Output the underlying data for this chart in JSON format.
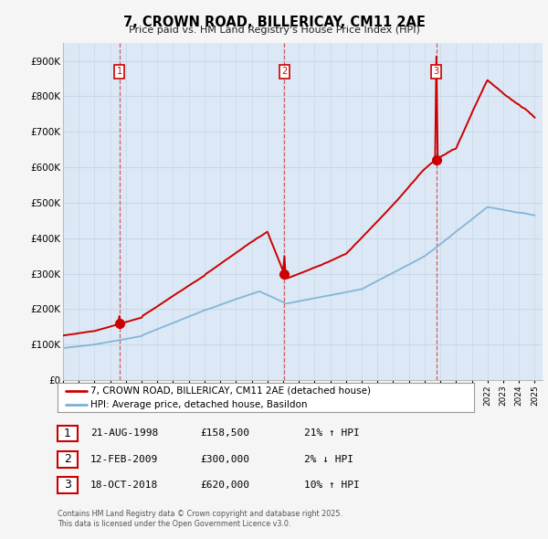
{
  "title": "7, CROWN ROAD, BILLERICAY, CM11 2AE",
  "subtitle": "Price paid vs. HM Land Registry's House Price Index (HPI)",
  "ylim": [
    0,
    950000
  ],
  "yticks": [
    0,
    100000,
    200000,
    300000,
    400000,
    500000,
    600000,
    700000,
    800000,
    900000
  ],
  "ytick_labels": [
    "£0",
    "£100K",
    "£200K",
    "£300K",
    "£400K",
    "£500K",
    "£600K",
    "£700K",
    "£800K",
    "£900K"
  ],
  "fig_bg_color": "#f5f5f5",
  "plot_bg_color": "#dce8f5",
  "grid_color": "#c8d8e8",
  "sale_color": "#cc0000",
  "hpi_color": "#7ab0d4",
  "vline_color": "#cc0000",
  "sale_prices": [
    158500,
    300000,
    620000
  ],
  "sale_labels": [
    "1",
    "2",
    "3"
  ],
  "table_entries": [
    {
      "num": "1",
      "date": "21-AUG-1998",
      "price": "£158,500",
      "hpi": "21% ↑ HPI"
    },
    {
      "num": "2",
      "date": "12-FEB-2009",
      "price": "£300,000",
      "hpi": "2% ↓ HPI"
    },
    {
      "num": "3",
      "date": "18-OCT-2018",
      "price": "£620,000",
      "hpi": "10% ↑ HPI"
    }
  ],
  "legend_entries": [
    "7, CROWN ROAD, BILLERICAY, CM11 2AE (detached house)",
    "HPI: Average price, detached house, Basildon"
  ],
  "footer": "Contains HM Land Registry data © Crown copyright and database right 2025.\nThis data is licensed under the Open Government Licence v3.0."
}
